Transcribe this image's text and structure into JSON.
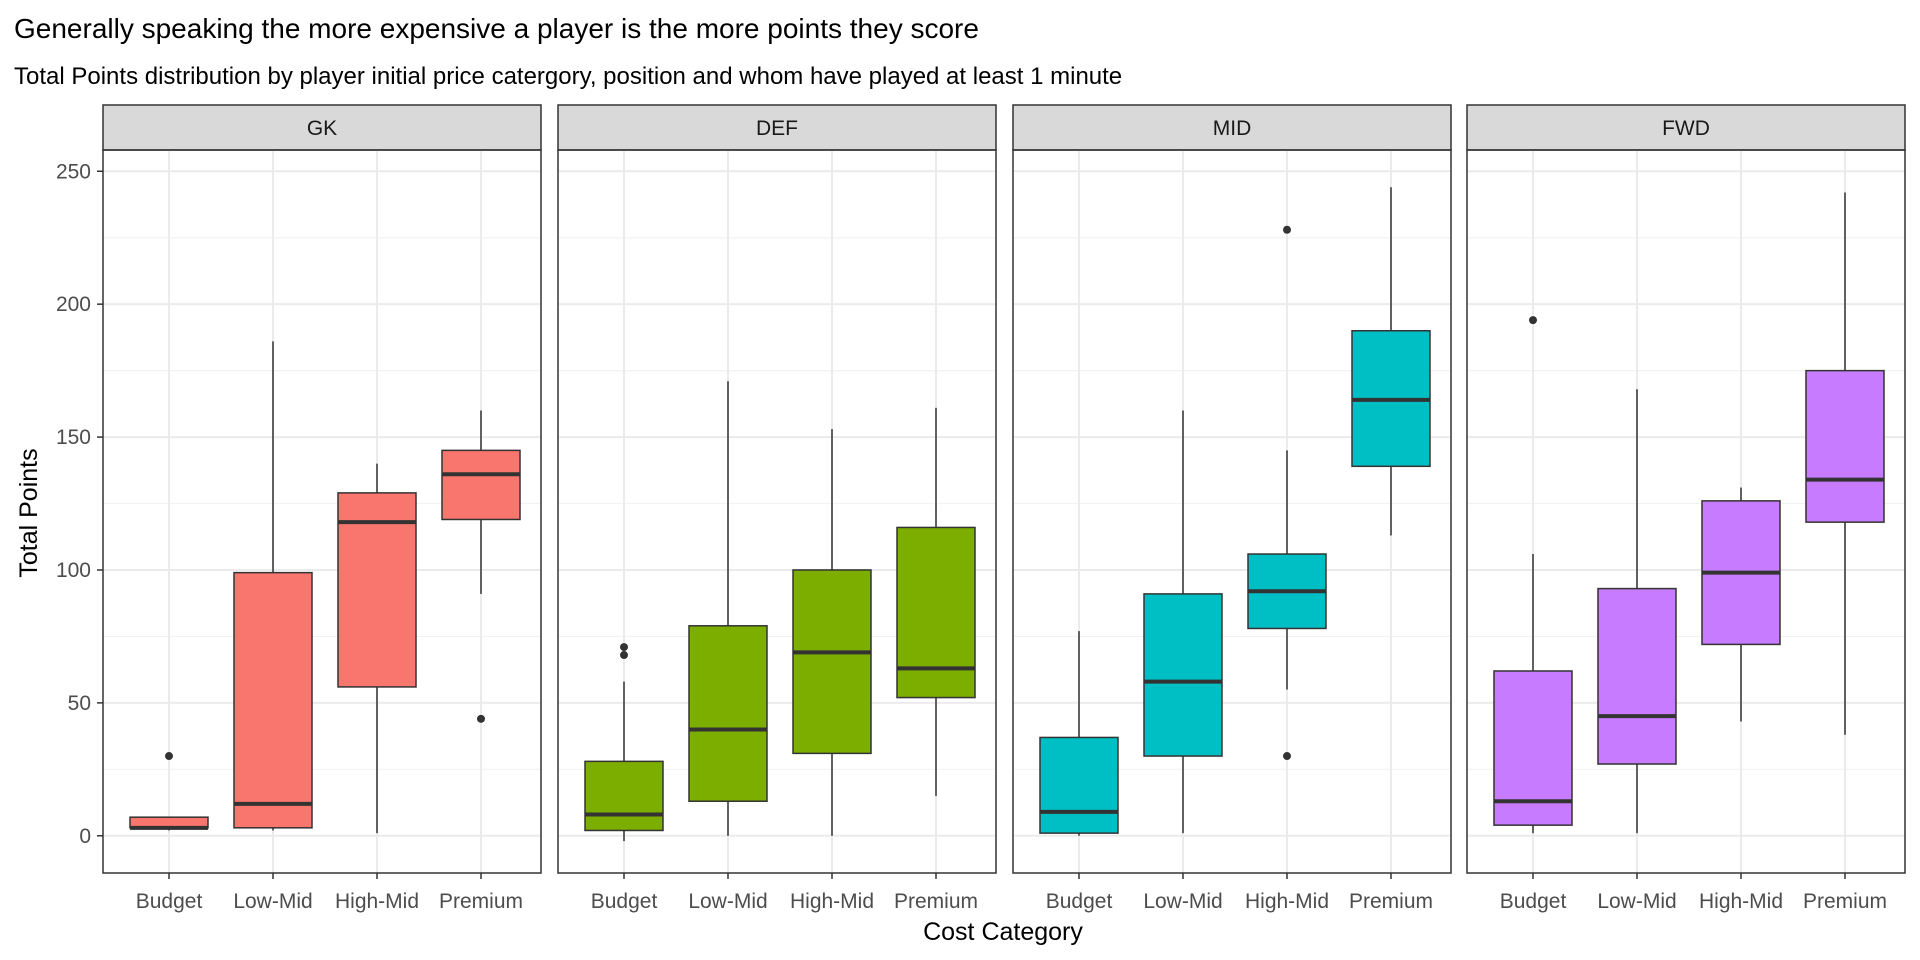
{
  "chart_data": {
    "type": "boxplot",
    "title": "Generally speaking the more expensive a player is the more points they score",
    "subtitle": "Total Points distribution by player initial price catergory, position and whom have played at least 1 minute",
    "xlabel": "Cost Category",
    "ylabel": "Total Points",
    "ylim": [
      -14,
      258
    ],
    "yticks": [
      0,
      50,
      100,
      150,
      200,
      250
    ],
    "categories": [
      "Budget",
      "Low-Mid",
      "High-Mid",
      "Premium"
    ],
    "grid": true,
    "legend": "none",
    "facets": [
      {
        "label": "GK",
        "color": "#F8766D",
        "boxes": [
          {
            "category": "Budget",
            "whisker_low": 2,
            "q1": 3,
            "median": 3,
            "q3": 7,
            "whisker_high": 7,
            "outliers": [
              30
            ]
          },
          {
            "category": "Low-Mid",
            "whisker_low": 2,
            "q1": 3,
            "median": 12,
            "q3": 99,
            "whisker_high": 186,
            "outliers": []
          },
          {
            "category": "High-Mid",
            "whisker_low": 1,
            "q1": 56,
            "median": 118,
            "q3": 129,
            "whisker_high": 140,
            "outliers": []
          },
          {
            "category": "Premium",
            "whisker_low": 91,
            "q1": 119,
            "median": 136,
            "q3": 145,
            "whisker_high": 160,
            "outliers": [
              44
            ]
          }
        ]
      },
      {
        "label": "DEF",
        "color": "#7CAE00",
        "boxes": [
          {
            "category": "Budget",
            "whisker_low": -2,
            "q1": 2,
            "median": 8,
            "q3": 28,
            "whisker_high": 58,
            "outliers": [
              68,
              71
            ]
          },
          {
            "category": "Low-Mid",
            "whisker_low": 0,
            "q1": 13,
            "median": 40,
            "q3": 79,
            "whisker_high": 171,
            "outliers": []
          },
          {
            "category": "High-Mid",
            "whisker_low": 0,
            "q1": 31,
            "median": 69,
            "q3": 100,
            "whisker_high": 153,
            "outliers": []
          },
          {
            "category": "Premium",
            "whisker_low": 15,
            "q1": 52,
            "median": 63,
            "q3": 116,
            "whisker_high": 161,
            "outliers": []
          }
        ]
      },
      {
        "label": "MID",
        "color": "#00BFC4",
        "boxes": [
          {
            "category": "Budget",
            "whisker_low": 0,
            "q1": 1,
            "median": 9,
            "q3": 37,
            "whisker_high": 77,
            "outliers": []
          },
          {
            "category": "Low-Mid",
            "whisker_low": 1,
            "q1": 30,
            "median": 58,
            "q3": 91,
            "whisker_high": 160,
            "outliers": []
          },
          {
            "category": "High-Mid",
            "whisker_low": 55,
            "q1": 78,
            "median": 92,
            "q3": 106,
            "whisker_high": 145,
            "outliers": [
              30,
              228
            ]
          },
          {
            "category": "Premium",
            "whisker_low": 113,
            "q1": 139,
            "median": 164,
            "q3": 190,
            "whisker_high": 244,
            "outliers": []
          }
        ]
      },
      {
        "label": "FWD",
        "color": "#C77CFF",
        "boxes": [
          {
            "category": "Budget",
            "whisker_low": 1,
            "q1": 4,
            "median": 13,
            "q3": 62,
            "whisker_high": 106,
            "outliers": [
              194
            ]
          },
          {
            "category": "Low-Mid",
            "whisker_low": 1,
            "q1": 27,
            "median": 45,
            "q3": 93,
            "whisker_high": 168,
            "outliers": []
          },
          {
            "category": "High-Mid",
            "whisker_low": 43,
            "q1": 72,
            "median": 99,
            "q3": 126,
            "whisker_high": 131,
            "outliers": []
          },
          {
            "category": "Premium",
            "whisker_low": 38,
            "q1": 118,
            "median": 134,
            "q3": 175,
            "whisker_high": 242,
            "outliers": []
          }
        ]
      }
    ]
  }
}
